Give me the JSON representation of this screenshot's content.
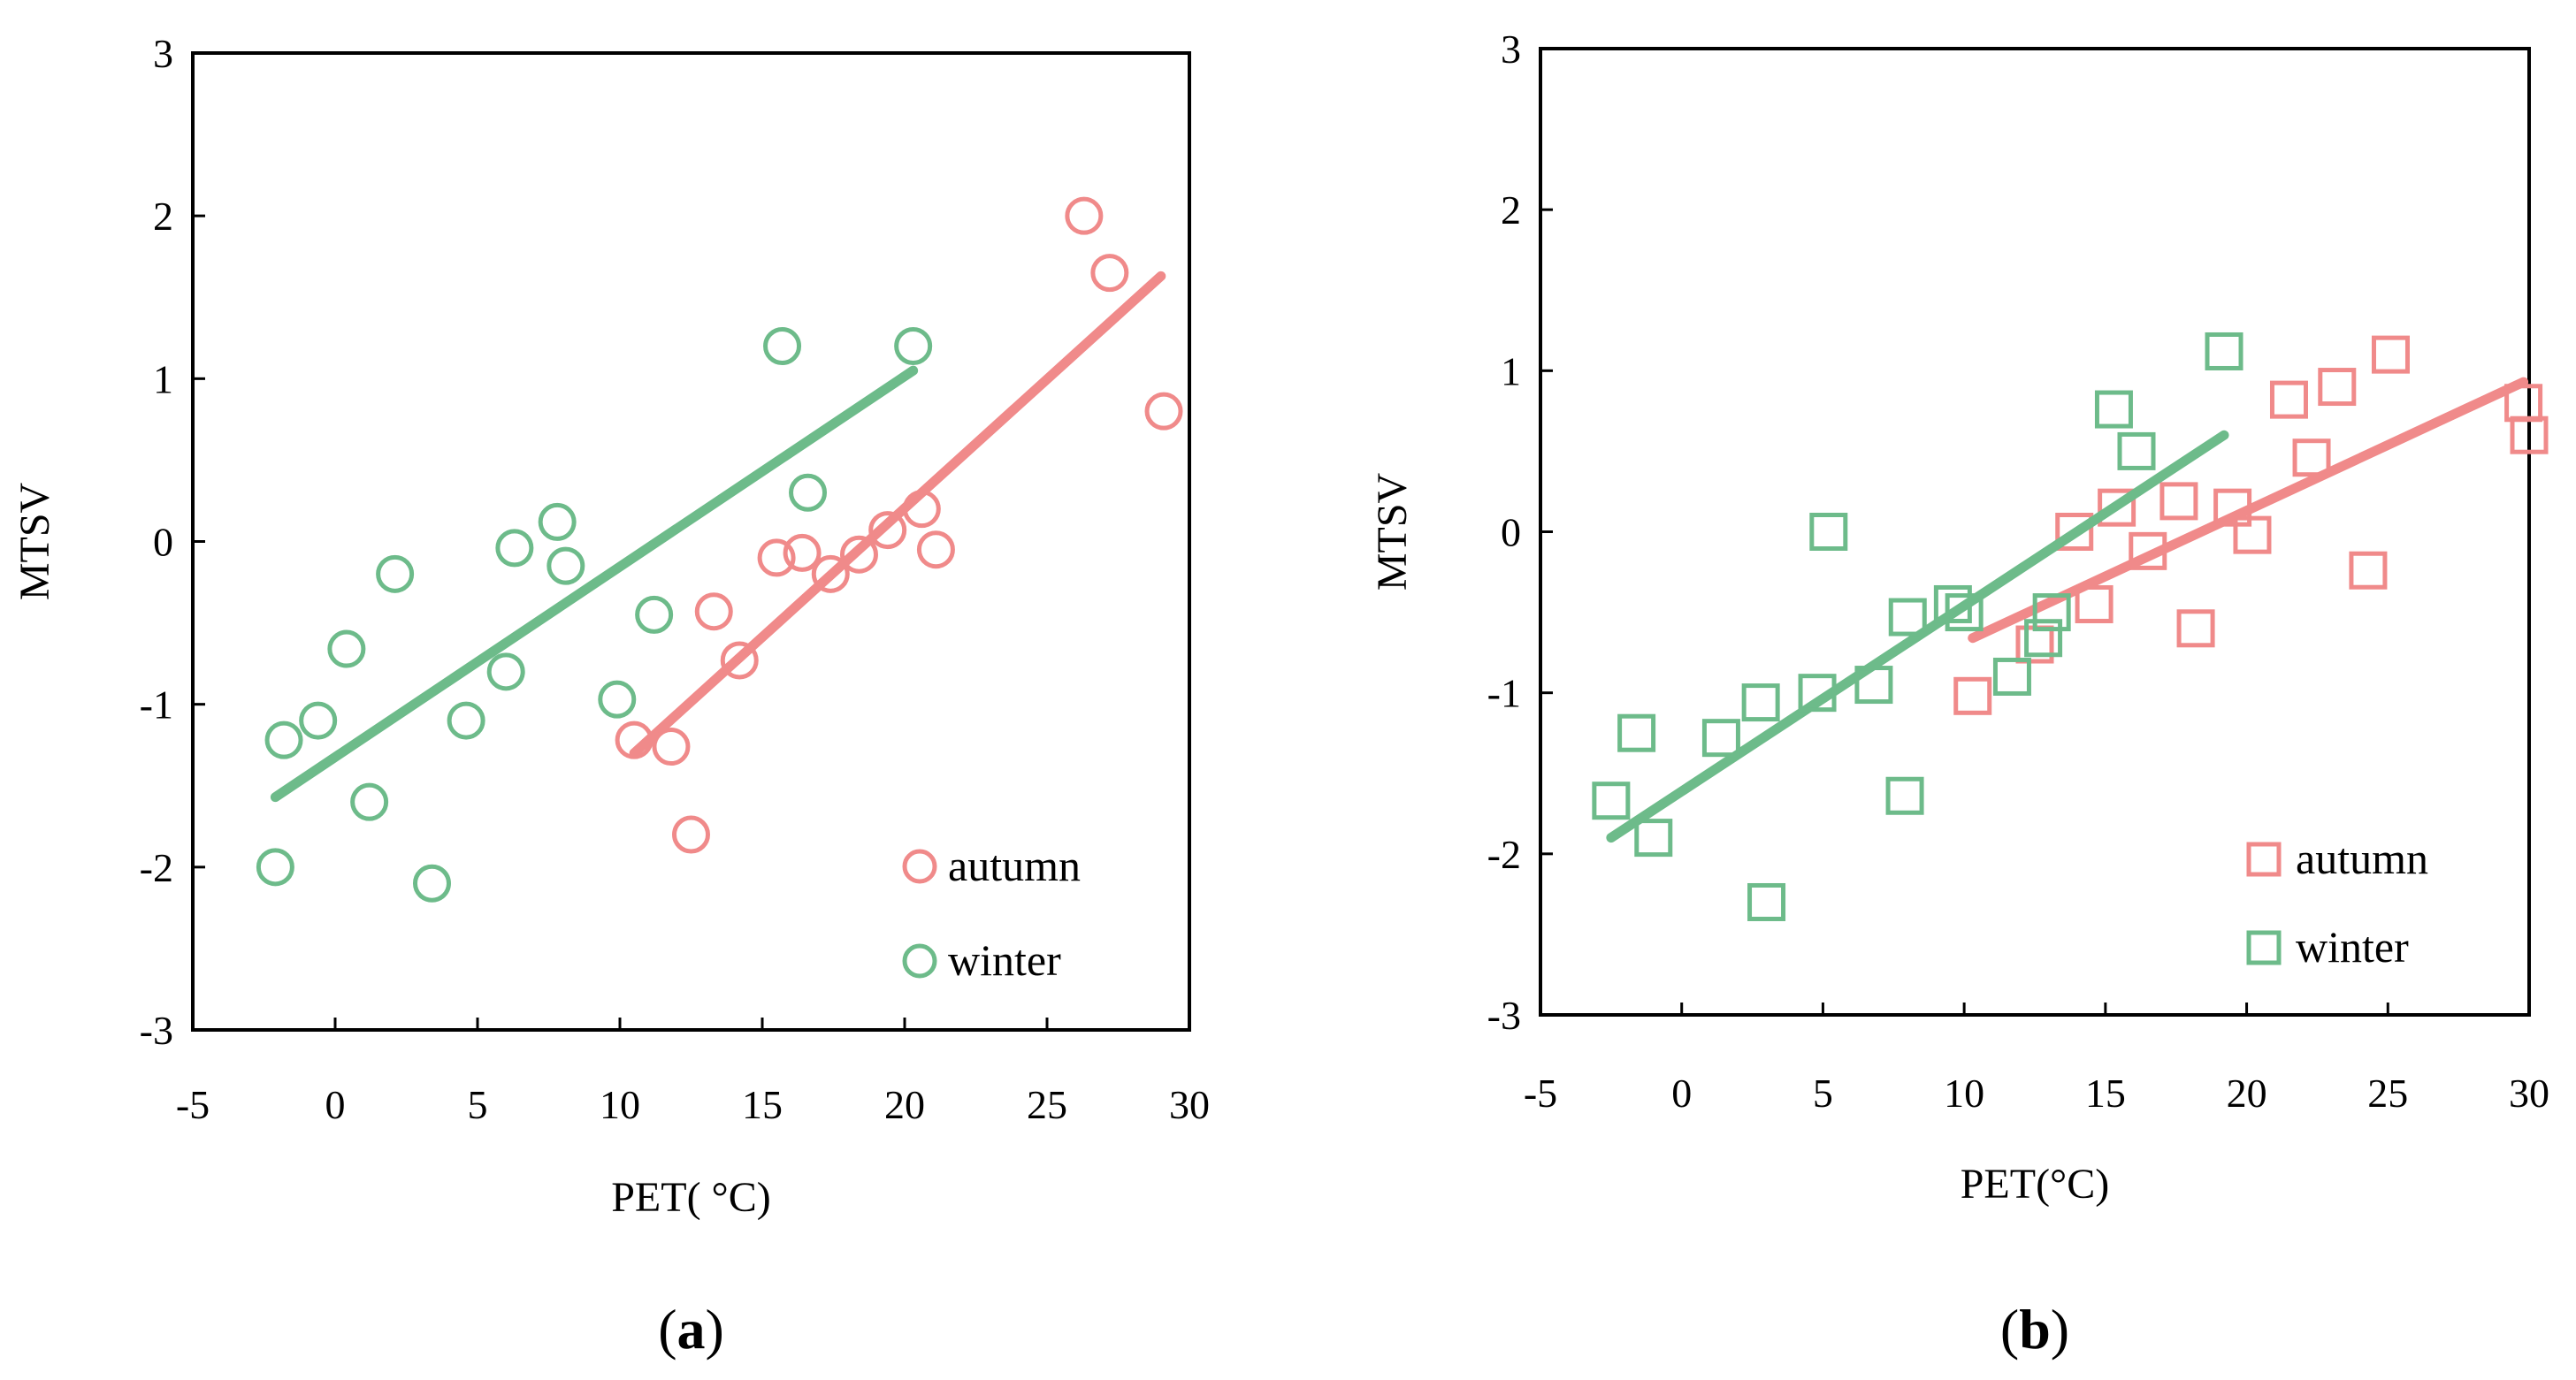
{
  "chart_data": [
    {
      "type": "scatter",
      "panel": "(a)",
      "panel_letter": "a",
      "xlabel": "PET( °C)",
      "ylabel": "MTSV",
      "xlim": [
        -5,
        30
      ],
      "ylim": [
        -3,
        3
      ],
      "xticks": [
        "-5",
        "0",
        "5",
        "10",
        "15",
        "20",
        "25",
        "30"
      ],
      "yticks": [
        "3",
        "2",
        "1",
        "0",
        "-1",
        "-2",
        "-3"
      ],
      "marker": "circle",
      "legend_position": "bottom-right",
      "series": [
        {
          "name": "autumn",
          "color": "#f08a8a",
          "points": [
            [
              26.3,
              2.0
            ],
            [
              27.2,
              1.65
            ],
            [
              29.1,
              0.8
            ],
            [
              20.6,
              0.2
            ],
            [
              21.1,
              -0.05
            ],
            [
              19.4,
              0.07
            ],
            [
              18.4,
              -0.08
            ],
            [
              17.4,
              -0.2
            ],
            [
              16.4,
              -0.07
            ],
            [
              15.5,
              -0.1
            ],
            [
              13.3,
              -0.43
            ],
            [
              14.2,
              -0.73
            ],
            [
              10.5,
              -1.22
            ],
            [
              11.8,
              -1.26
            ],
            [
              12.5,
              -1.8
            ]
          ],
          "fit": [
            [
              10.5,
              -1.3
            ],
            [
              29.0,
              1.63
            ]
          ]
        },
        {
          "name": "winter",
          "color": "#6dbb8a",
          "points": [
            [
              -2.1,
              -2.0
            ],
            [
              -1.8,
              -1.22
            ],
            [
              -0.6,
              -1.1
            ],
            [
              0.4,
              -0.66
            ],
            [
              1.2,
              -1.6
            ],
            [
              2.1,
              -0.2
            ],
            [
              3.4,
              -2.1
            ],
            [
              4.6,
              -1.1
            ],
            [
              6.0,
              -0.8
            ],
            [
              6.3,
              -0.04
            ],
            [
              7.8,
              0.12
            ],
            [
              8.1,
              -0.15
            ],
            [
              9.9,
              -0.97
            ],
            [
              11.2,
              -0.45
            ],
            [
              15.7,
              1.2
            ],
            [
              16.6,
              0.3
            ],
            [
              20.3,
              1.2
            ]
          ],
          "fit": [
            [
              -2.1,
              -1.57
            ],
            [
              20.3,
              1.05
            ]
          ]
        }
      ]
    },
    {
      "type": "scatter",
      "panel": "(b)",
      "panel_letter": "b",
      "xlabel": "PET(°C)",
      "ylabel": "MTSV",
      "xlim": [
        -5,
        30
      ],
      "ylim": [
        -3,
        3
      ],
      "xticks": [
        "-5",
        "0",
        "5",
        "10",
        "15",
        "20",
        "25",
        "30"
      ],
      "yticks": [
        "3",
        "2",
        "1",
        "0",
        "-1",
        "-2",
        "-3"
      ],
      "marker": "square",
      "legend_position": "bottom-right",
      "series": [
        {
          "name": "autumn",
          "color": "#f08a8a",
          "points": [
            [
              10.3,
              -1.02
            ],
            [
              12.5,
              -0.7
            ],
            [
              13.9,
              0.0
            ],
            [
              14.6,
              -0.45
            ],
            [
              15.4,
              0.15
            ],
            [
              16.5,
              -0.12
            ],
            [
              17.6,
              0.19
            ],
            [
              18.2,
              -0.6
            ],
            [
              19.5,
              0.15
            ],
            [
              20.2,
              -0.02
            ],
            [
              21.5,
              0.82
            ],
            [
              22.3,
              0.46
            ],
            [
              23.2,
              0.9
            ],
            [
              24.3,
              -0.24
            ],
            [
              25.1,
              1.1
            ],
            [
              29.8,
              0.8
            ],
            [
              30.0,
              0.6
            ]
          ],
          "fit": [
            [
              10.3,
              -0.66
            ],
            [
              29.8,
              0.93
            ]
          ]
        },
        {
          "name": "winter",
          "color": "#6dbb8a",
          "points": [
            [
              -2.5,
              -1.67
            ],
            [
              -1.6,
              -1.25
            ],
            [
              -1.0,
              -1.9
            ],
            [
              1.4,
              -1.28
            ],
            [
              2.8,
              -1.06
            ],
            [
              3.0,
              -2.3
            ],
            [
              4.8,
              -1.0
            ],
            [
              5.2,
              0.0
            ],
            [
              6.8,
              -0.95
            ],
            [
              7.9,
              -1.64
            ],
            [
              8.0,
              -0.53
            ],
            [
              9.6,
              -0.45
            ],
            [
              10.0,
              -0.5
            ],
            [
              11.7,
              -0.9
            ],
            [
              12.8,
              -0.66
            ],
            [
              13.1,
              -0.5
            ],
            [
              15.3,
              0.76
            ],
            [
              16.1,
              0.5
            ],
            [
              19.2,
              1.12
            ]
          ],
          "fit": [
            [
              -2.5,
              -1.9
            ],
            [
              19.2,
              0.6
            ]
          ]
        }
      ]
    }
  ]
}
